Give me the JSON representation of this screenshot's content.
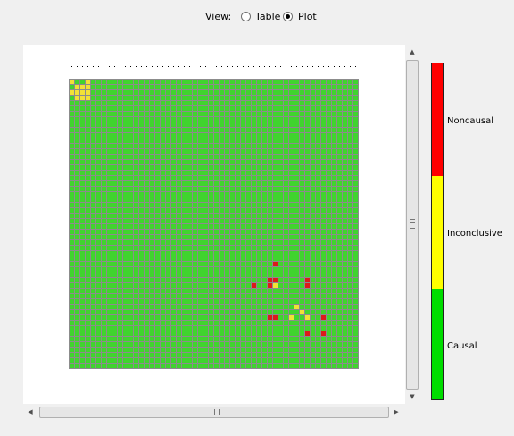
{
  "view_selector": {
    "label": "View:",
    "options": [
      {
        "label": "Table",
        "selected": false
      },
      {
        "label": "Plot",
        "selected": true
      }
    ]
  },
  "legend": {
    "items": [
      {
        "label": "Noncausal",
        "color": "#ff0000"
      },
      {
        "label": "Inconclusive",
        "color": "#ffff00"
      },
      {
        "label": "Causal",
        "color": "#00dd00"
      }
    ]
  },
  "chart_data": {
    "type": "heatmap",
    "grid_size": 54,
    "default_category": "Causal",
    "colors": {
      "Causal": "#40d42e",
      "Inconclusive": "#f2e236",
      "Noncausal": "#dc1b1b",
      "gridline": "#8c8c8c"
    },
    "cells": [
      {
        "row": 0,
        "col": 0,
        "category": "Inconclusive"
      },
      {
        "row": 0,
        "col": 3,
        "category": "Inconclusive"
      },
      {
        "row": 1,
        "col": 1,
        "category": "Inconclusive"
      },
      {
        "row": 1,
        "col": 2,
        "category": "Inconclusive"
      },
      {
        "row": 1,
        "col": 3,
        "category": "Inconclusive"
      },
      {
        "row": 2,
        "col": 0,
        "category": "Inconclusive"
      },
      {
        "row": 2,
        "col": 1,
        "category": "Inconclusive"
      },
      {
        "row": 2,
        "col": 2,
        "category": "Inconclusive"
      },
      {
        "row": 2,
        "col": 3,
        "category": "Inconclusive"
      },
      {
        "row": 3,
        "col": 1,
        "category": "Inconclusive"
      },
      {
        "row": 3,
        "col": 2,
        "category": "Inconclusive"
      },
      {
        "row": 3,
        "col": 3,
        "category": "Inconclusive"
      },
      {
        "row": 34,
        "col": 38,
        "category": "Noncausal"
      },
      {
        "row": 37,
        "col": 37,
        "category": "Noncausal"
      },
      {
        "row": 37,
        "col": 38,
        "category": "Noncausal"
      },
      {
        "row": 37,
        "col": 44,
        "category": "Noncausal"
      },
      {
        "row": 38,
        "col": 34,
        "category": "Noncausal"
      },
      {
        "row": 38,
        "col": 37,
        "category": "Noncausal"
      },
      {
        "row": 38,
        "col": 38,
        "category": "Inconclusive"
      },
      {
        "row": 38,
        "col": 44,
        "category": "Noncausal"
      },
      {
        "row": 42,
        "col": 42,
        "category": "Inconclusive"
      },
      {
        "row": 43,
        "col": 43,
        "category": "Inconclusive"
      },
      {
        "row": 44,
        "col": 37,
        "category": "Noncausal"
      },
      {
        "row": 44,
        "col": 38,
        "category": "Noncausal"
      },
      {
        "row": 44,
        "col": 41,
        "category": "Inconclusive"
      },
      {
        "row": 44,
        "col": 44,
        "category": "Inconclusive"
      },
      {
        "row": 44,
        "col": 47,
        "category": "Noncausal"
      },
      {
        "row": 47,
        "col": 44,
        "category": "Noncausal"
      },
      {
        "row": 47,
        "col": 47,
        "category": "Noncausal"
      }
    ]
  }
}
